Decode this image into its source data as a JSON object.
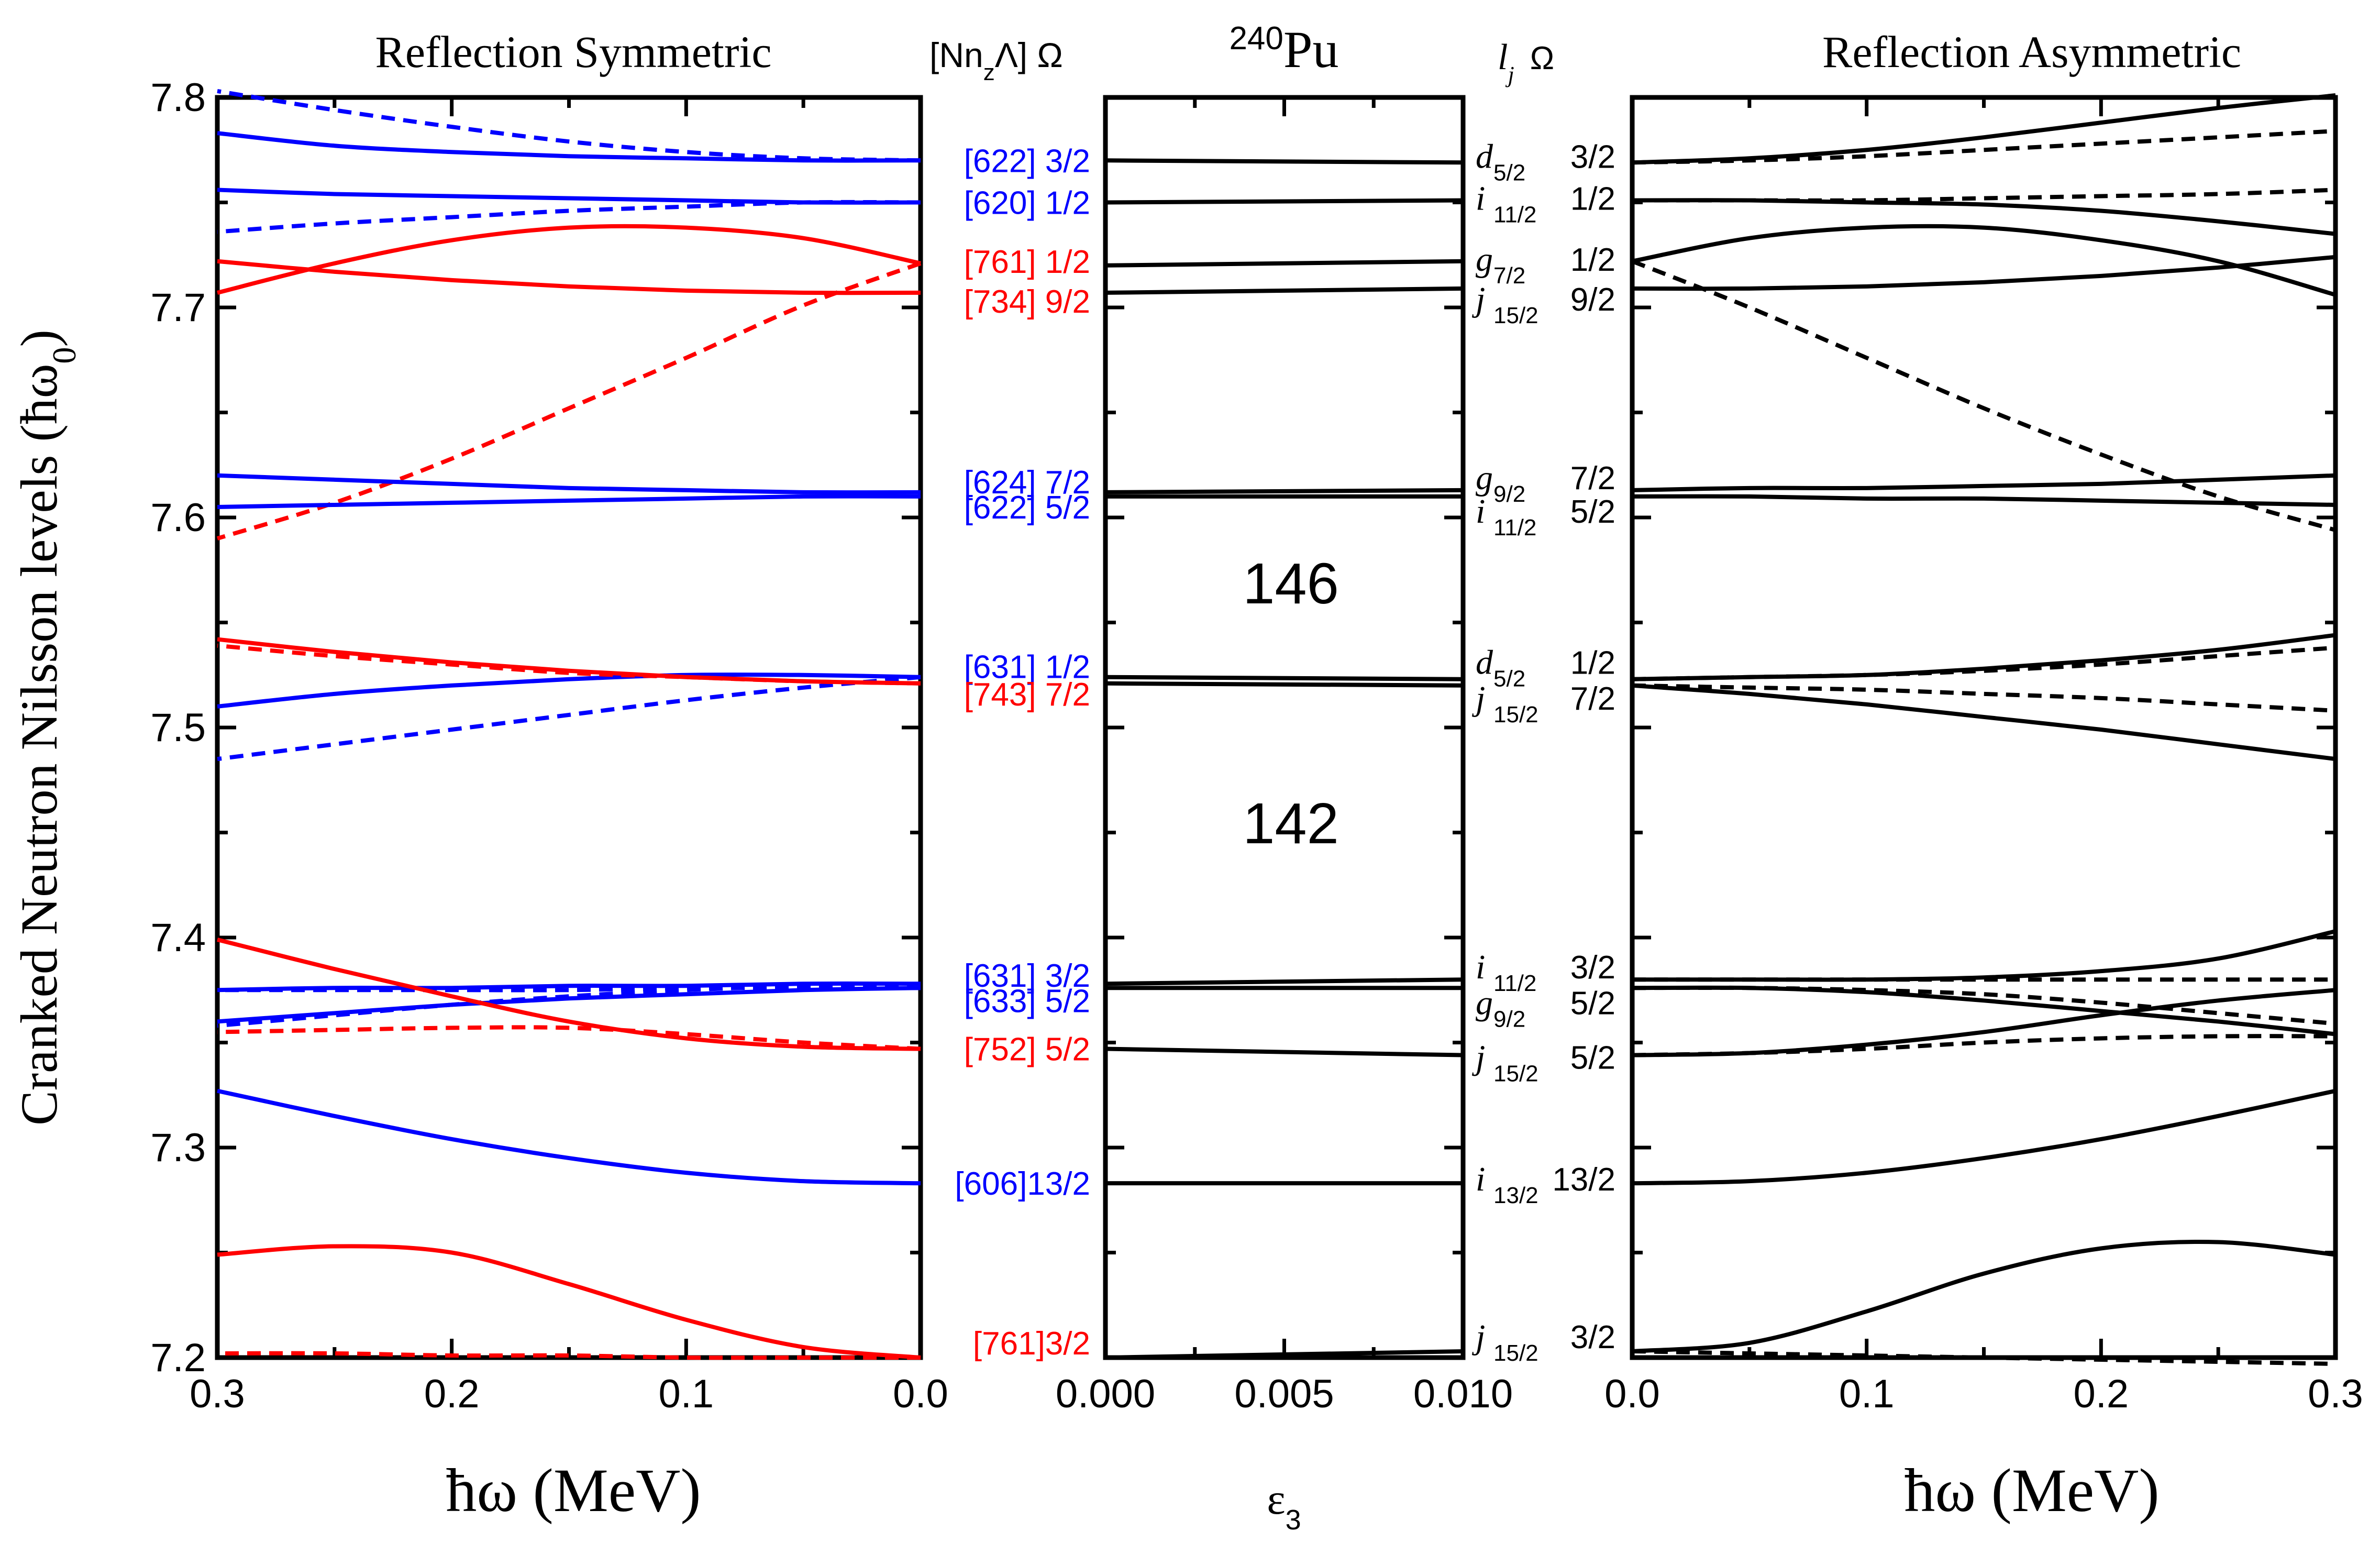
{
  "figure": {
    "nucleus_mass": "240",
    "nucleus_symbol": "Pu",
    "y_axis_label": "Cranked Neutron Nilsson levels (ħω",
    "y_axis_label_sub": "0",
    "left_xlabel": "ħω (MeV)",
    "right_xlabel": "ħω (MeV)",
    "mid_xlabel": "ε",
    "mid_xlabel_sub": "3",
    "left_title": "Reflection Symmetric",
    "right_title": "Reflection Asymmetric",
    "left_header": "[Nn",
    "left_header_sub": "z",
    "left_header_tail": "Λ] Ω",
    "right_header_l": "l",
    "right_header_sub": "j",
    "right_header_omega": "Ω",
    "gap_146": "146",
    "gap_142": "142"
  },
  "colors": {
    "positive_parity": "#0000ff",
    "negative_parity": "#ff0000",
    "asymmetric": "#000000"
  },
  "chart_data": [
    {
      "panel": "Reflection Symmetric",
      "type": "line",
      "xlabel": "ħω (MeV)",
      "ylabel": "Cranked Neutron Nilsson levels (ħω₀)",
      "xlim": [
        0.3,
        0.0
      ],
      "ylim": [
        7.2,
        7.8
      ],
      "xticks": [
        "0.3",
        "0.2",
        "0.1",
        "0.0"
      ],
      "yticks": [
        "7.2",
        "7.3",
        "7.4",
        "7.5",
        "7.6",
        "7.7",
        "7.8"
      ],
      "x": [
        0.0,
        0.05,
        0.1,
        0.15,
        0.2,
        0.25,
        0.3
      ],
      "series": [
        {
          "name": "[622] 3/2 a",
          "color": "blue",
          "style": "solid",
          "values": [
            7.77,
            7.77,
            7.771,
            7.772,
            7.774,
            7.777,
            7.783
          ]
        },
        {
          "name": "[622] 3/2 b",
          "color": "blue",
          "style": "dashed",
          "values": [
            7.77,
            7.771,
            7.774,
            7.779,
            7.786,
            7.794,
            7.803
          ]
        },
        {
          "name": "[620] 1/2 a",
          "color": "blue",
          "style": "solid",
          "values": [
            7.75,
            7.75,
            7.751,
            7.752,
            7.753,
            7.754,
            7.756
          ]
        },
        {
          "name": "[620] 1/2 b",
          "color": "blue",
          "style": "dashed",
          "values": [
            7.75,
            7.75,
            7.748,
            7.746,
            7.743,
            7.74,
            7.736
          ]
        },
        {
          "name": "[761] 1/2 a",
          "color": "red",
          "style": "solid",
          "values": [
            7.721,
            7.733,
            7.738,
            7.738,
            7.732,
            7.721,
            7.707
          ]
        },
        {
          "name": "[761] 1/2 b",
          "color": "red",
          "style": "dashed",
          "values": [
            7.721,
            7.701,
            7.676,
            7.652,
            7.628,
            7.607,
            7.59
          ]
        },
        {
          "name": "[734] 9/2 a",
          "color": "red",
          "style": "solid",
          "values": [
            7.707,
            7.707,
            7.708,
            7.71,
            7.713,
            7.717,
            7.722
          ]
        },
        {
          "name": "[624] 7/2 a",
          "color": "blue",
          "style": "solid",
          "values": [
            7.612,
            7.612,
            7.613,
            7.614,
            7.616,
            7.618,
            7.62
          ]
        },
        {
          "name": "[622] 5/2 a",
          "color": "blue",
          "style": "solid",
          "values": [
            7.61,
            7.61,
            7.609,
            7.608,
            7.607,
            7.606,
            7.605
          ]
        },
        {
          "name": "[631] 1/2 a",
          "color": "blue",
          "style": "solid",
          "values": [
            7.524,
            7.525,
            7.525,
            7.523,
            7.52,
            7.516,
            7.51
          ]
        },
        {
          "name": "[631] 1/2 b",
          "color": "blue",
          "style": "dashed",
          "values": [
            7.524,
            7.519,
            7.513,
            7.506,
            7.499,
            7.492,
            7.485
          ]
        },
        {
          "name": "[743] 7/2 a",
          "color": "red",
          "style": "solid",
          "values": [
            7.521,
            7.522,
            7.524,
            7.527,
            7.531,
            7.536,
            7.542
          ]
        },
        {
          "name": "[743] 7/2 b",
          "color": "red",
          "style": "dashed",
          "values": [
            7.521,
            7.522,
            7.524,
            7.526,
            7.53,
            7.534,
            7.539
          ]
        },
        {
          "name": "[631] 3/2 a",
          "color": "blue",
          "style": "solid",
          "values": [
            7.378,
            7.378,
            7.377,
            7.377,
            7.376,
            7.376,
            7.375
          ]
        },
        {
          "name": "[631] 3/2 b",
          "color": "blue",
          "style": "dashed",
          "values": [
            7.378,
            7.377,
            7.375,
            7.372,
            7.368,
            7.363,
            7.358
          ]
        },
        {
          "name": "[633] 5/2 a",
          "color": "blue",
          "style": "solid",
          "values": [
            7.376,
            7.375,
            7.373,
            7.371,
            7.368,
            7.364,
            7.36
          ]
        },
        {
          "name": "[633] 5/2 b",
          "color": "blue",
          "style": "dashed",
          "values": [
            7.376,
            7.376,
            7.376,
            7.375,
            7.375,
            7.375,
            7.375
          ]
        },
        {
          "name": "[752] 5/2 a",
          "color": "red",
          "style": "solid",
          "values": [
            7.347,
            7.348,
            7.352,
            7.36,
            7.372,
            7.385,
            7.399
          ]
        },
        {
          "name": "[752] 5/2 b",
          "color": "red",
          "style": "dashed",
          "values": [
            7.347,
            7.35,
            7.354,
            7.357,
            7.357,
            7.356,
            7.355
          ]
        },
        {
          "name": "[606] 13/2 a",
          "color": "blue",
          "style": "solid",
          "values": [
            7.283,
            7.284,
            7.288,
            7.295,
            7.304,
            7.315,
            7.327
          ]
        },
        {
          "name": "[761] 3/2 a",
          "color": "red",
          "style": "solid",
          "values": [
            7.2,
            7.205,
            7.218,
            7.235,
            7.25,
            7.253,
            7.249
          ]
        },
        {
          "name": "[761] 3/2 b",
          "color": "red",
          "style": "dashed",
          "values": [
            7.2,
            7.2,
            7.2,
            7.201,
            7.201,
            7.202,
            7.202
          ]
        }
      ]
    },
    {
      "panel": "240Pu",
      "type": "line",
      "xlabel": "ε₃",
      "xlim": [
        0.0,
        0.01
      ],
      "ylim": [
        7.2,
        7.8
      ],
      "xticks": [
        "0.000",
        "0.005",
        "0.010"
      ],
      "x": [
        0.0,
        0.01
      ],
      "series": [
        {
          "name": "d5/2 3/2",
          "values": [
            7.77,
            7.769
          ]
        },
        {
          "name": "i11/2 1/2",
          "values": [
            7.75,
            7.751
          ]
        },
        {
          "name": "g7/2 1/2",
          "values": [
            7.72,
            7.722
          ]
        },
        {
          "name": "j15/2 9/2",
          "values": [
            7.707,
            7.709
          ]
        },
        {
          "name": "g9/2 7/2",
          "values": [
            7.612,
            7.613
          ]
        },
        {
          "name": "i11/2 5/2",
          "values": [
            7.61,
            7.61
          ]
        },
        {
          "name": "d5/2 1/2",
          "values": [
            7.524,
            7.523
          ]
        },
        {
          "name": "j15/2 7/2",
          "values": [
            7.521,
            7.52
          ]
        },
        {
          "name": "i11/2 3/2",
          "values": [
            7.378,
            7.38
          ]
        },
        {
          "name": "g9/2 5/2",
          "values": [
            7.376,
            7.376
          ]
        },
        {
          "name": "j15/2 5/2",
          "values": [
            7.347,
            7.344
          ]
        },
        {
          "name": "i13/2 13/2",
          "values": [
            7.283,
            7.283
          ]
        },
        {
          "name": "j15/2 3/2",
          "values": [
            7.2,
            7.203
          ]
        }
      ]
    },
    {
      "panel": "Reflection Asymmetric",
      "type": "line",
      "xlabel": "ħω (MeV)",
      "xlim": [
        0.0,
        0.3
      ],
      "ylim": [
        7.2,
        7.8
      ],
      "xticks": [
        "0.0",
        "0.1",
        "0.2",
        "0.3"
      ],
      "x": [
        0.0,
        0.05,
        0.1,
        0.15,
        0.2,
        0.25,
        0.3
      ],
      "series": [
        {
          "name": "d5/2 3/2 a",
          "style": "solid",
          "values": [
            7.769,
            7.771,
            7.775,
            7.781,
            7.788,
            7.795,
            7.801
          ]
        },
        {
          "name": "d5/2 3/2 b",
          "style": "dashed",
          "values": [
            7.769,
            7.77,
            7.772,
            7.775,
            7.778,
            7.781,
            7.784
          ]
        },
        {
          "name": "i11/2 1/2 a",
          "style": "solid",
          "values": [
            7.751,
            7.751,
            7.75,
            7.749,
            7.746,
            7.741,
            7.735
          ]
        },
        {
          "name": "i11/2 1/2 b",
          "style": "dashed",
          "values": [
            7.751,
            7.751,
            7.751,
            7.752,
            7.753,
            7.754,
            7.756
          ]
        },
        {
          "name": "g7/2 1/2 a",
          "style": "solid",
          "values": [
            7.722,
            7.733,
            7.738,
            7.738,
            7.732,
            7.722,
            7.706
          ]
        },
        {
          "name": "g7/2 1/2 b",
          "style": "dashed",
          "values": [
            7.722,
            7.7,
            7.676,
            7.652,
            7.63,
            7.61,
            7.594
          ]
        },
        {
          "name": "j15/2 9/2 a",
          "style": "solid",
          "values": [
            7.709,
            7.709,
            7.71,
            7.712,
            7.715,
            7.719,
            7.724
          ]
        },
        {
          "name": "g9/2 7/2 a",
          "style": "solid",
          "values": [
            7.613,
            7.614,
            7.614,
            7.615,
            7.616,
            7.618,
            7.62
          ]
        },
        {
          "name": "i11/2 5/2 a",
          "style": "solid",
          "values": [
            7.61,
            7.61,
            7.609,
            7.609,
            7.608,
            7.607,
            7.606
          ]
        },
        {
          "name": "d5/2 1/2 a",
          "style": "solid",
          "values": [
            7.523,
            7.524,
            7.525,
            7.528,
            7.532,
            7.537,
            7.544
          ]
        },
        {
          "name": "d5/2 1/2 b",
          "style": "dashed",
          "values": [
            7.523,
            7.524,
            7.525,
            7.527,
            7.53,
            7.534,
            7.538
          ]
        },
        {
          "name": "j15/2 7/2 a",
          "style": "solid",
          "values": [
            7.52,
            7.516,
            7.511,
            7.505,
            7.499,
            7.492,
            7.485
          ]
        },
        {
          "name": "j15/2 7/2 b",
          "style": "dashed",
          "values": [
            7.52,
            7.519,
            7.518,
            7.516,
            7.514,
            7.511,
            7.508
          ]
        },
        {
          "name": "i11/2 3/2 a",
          "style": "solid",
          "values": [
            7.38,
            7.38,
            7.38,
            7.381,
            7.384,
            7.39,
            7.403
          ]
        },
        {
          "name": "i11/2 3/2 b",
          "style": "dashed",
          "values": [
            7.38,
            7.38,
            7.38,
            7.38,
            7.38,
            7.38,
            7.38
          ]
        },
        {
          "name": "g9/2 5/2 a",
          "style": "solid",
          "values": [
            7.376,
            7.376,
            7.374,
            7.37,
            7.365,
            7.36,
            7.354
          ]
        },
        {
          "name": "g9/2 5/2 b",
          "style": "dashed",
          "values": [
            7.376,
            7.376,
            7.375,
            7.373,
            7.369,
            7.364,
            7.359
          ]
        },
        {
          "name": "j15/2 5/2 a",
          "style": "solid",
          "values": [
            7.344,
            7.345,
            7.349,
            7.355,
            7.363,
            7.37,
            7.375
          ]
        },
        {
          "name": "j15/2 5/2 b",
          "style": "dashed",
          "values": [
            7.344,
            7.345,
            7.347,
            7.35,
            7.352,
            7.353,
            7.353
          ]
        },
        {
          "name": "i13/2 13/2 a",
          "style": "solid",
          "values": [
            7.283,
            7.284,
            7.288,
            7.295,
            7.304,
            7.315,
            7.327
          ]
        },
        {
          "name": "j15/2 3/2 a",
          "style": "solid",
          "values": [
            7.203,
            7.207,
            7.222,
            7.24,
            7.252,
            7.255,
            7.249
          ]
        },
        {
          "name": "j15/2 3/2 b",
          "style": "dashed",
          "values": [
            7.203,
            7.202,
            7.201,
            7.2,
            7.199,
            7.198,
            7.197
          ]
        }
      ]
    }
  ],
  "nilsson_labels": [
    {
      "text": "[622] 3/2",
      "y": 7.77,
      "color": "blue"
    },
    {
      "text": "[620] 1/2",
      "y": 7.75,
      "color": "blue"
    },
    {
      "text": "[761] 1/2",
      "y": 7.722,
      "color": "red"
    },
    {
      "text": "[734] 9/2",
      "y": 7.703,
      "color": "red"
    },
    {
      "text": "[624] 7/2",
      "y": 7.617,
      "color": "blue"
    },
    {
      "text": "[622] 5/2",
      "y": 7.605,
      "color": "blue"
    },
    {
      "text": "[631] 1/2",
      "y": 7.529,
      "color": "blue"
    },
    {
      "text": "[743] 7/2",
      "y": 7.516,
      "color": "red"
    },
    {
      "text": "[631] 3/2",
      "y": 7.382,
      "color": "blue"
    },
    {
      "text": "[633] 5/2",
      "y": 7.37,
      "color": "blue"
    },
    {
      "text": "[752] 5/2",
      "y": 7.347,
      "color": "red"
    },
    {
      "text": "[606]13/2",
      "y": 7.283,
      "color": "blue"
    },
    {
      "text": "[761]3/2",
      "y": 7.207,
      "color": "red"
    }
  ],
  "spherical_labels": [
    {
      "l": "d",
      "j": "5/2",
      "omega": "3/2",
      "y": 7.772
    },
    {
      "l": "i",
      "j": "11/2",
      "omega": "1/2",
      "y": 7.752
    },
    {
      "l": "g",
      "j": "7/2",
      "omega": "1/2",
      "y": 7.723
    },
    {
      "l": "j",
      "j": "15/2",
      "omega": "9/2",
      "y": 7.704
    },
    {
      "l": "g",
      "j": "9/2",
      "omega": "7/2",
      "y": 7.619
    },
    {
      "l": "i",
      "j": "11/2",
      "omega": "5/2",
      "y": 7.603
    },
    {
      "l": "d",
      "j": "5/2",
      "omega": "1/2",
      "y": 7.531
    },
    {
      "l": "j",
      "j": "15/2",
      "omega": "7/2",
      "y": 7.514
    },
    {
      "l": "i",
      "j": "11/2",
      "omega": "3/2",
      "y": 7.386
    },
    {
      "l": "g",
      "j": "9/2",
      "omega": "5/2",
      "y": 7.369
    },
    {
      "l": "j",
      "j": "15/2",
      "omega": "5/2",
      "y": 7.343
    },
    {
      "l": "i",
      "j": "13/2",
      "omega": "13/2",
      "y": 7.285
    },
    {
      "l": "j",
      "j": "15/2",
      "omega": "3/2",
      "y": 7.21
    }
  ]
}
